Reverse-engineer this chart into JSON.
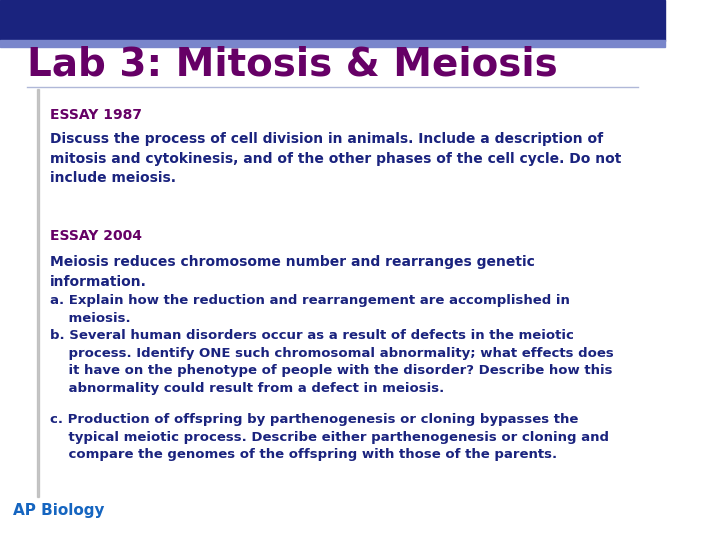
{
  "title": "Lab 3: Mitosis & Meiosis",
  "title_color": "#660066",
  "title_fontsize": 28,
  "header_bg_color": "#1a237e",
  "header_stripe_color": "#7986cb",
  "bg_color": "#ffffff",
  "left_bar_color": "#9e9e9e",
  "underline_color": "#b0b8d8",
  "essay1_label": "ESSAY 1987",
  "essay1_label_color": "#660066",
  "essay1_label_fontsize": 10,
  "essay1_body": "Discuss the process of cell division in animals. Include a description of\nmitosis and cytokinesis, and of the other phases of the cell cycle. Do not\ninclude meiosis.",
  "essay1_body_color": "#1a237e",
  "essay1_body_fontsize": 10,
  "essay2_label": "ESSAY 2004",
  "essay2_label_color": "#660066",
  "essay2_label_fontsize": 10,
  "essay2_intro": "Meiosis reduces chromosome number and rearranges genetic\ninformation.",
  "essay2_intro_color": "#1a237e",
  "essay2_intro_fontsize": 10,
  "essay2_items": [
    "a. Explain how the reduction and rearrangement are accomplished in\n    meiosis.",
    "b. Several human disorders occur as a result of defects in the meiotic\n    process. Identify ONE such chromosomal abnormality; what effects does\n    it have on the phenotype of people with the disorder? Describe how this\n    abnormality could result from a defect in meiosis.",
    "c. Production of offspring by parthenogenesis or cloning bypasses the\n    typical meiotic process. Describe either parthenogenesis or cloning and\n    compare the genomes of the offspring with those of the parents."
  ],
  "essay2_items_color": "#1a237e",
  "essay2_items_fontsize": 9.5,
  "footer_label": "AP Biology",
  "footer_color": "#1565c0",
  "footer_fontsize": 11
}
